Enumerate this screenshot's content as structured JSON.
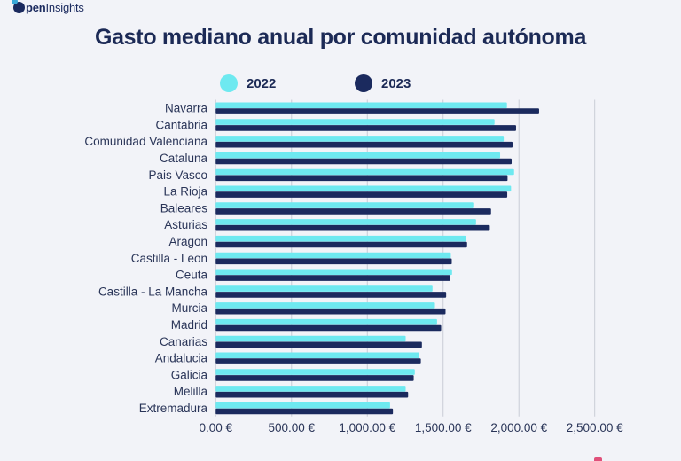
{
  "brand": {
    "logo_bold": "pen",
    "logo_light": "Insights",
    "logo_icon": "open-insights-o-icon"
  },
  "chart_data": {
    "type": "bar",
    "orientation": "horizontal",
    "title": "Gasto mediano anual por comunidad autónoma",
    "xlabel": "",
    "ylabel": "",
    "xlim": [
      0,
      2500
    ],
    "x_ticks": [
      0,
      500,
      1000,
      1500,
      2000,
      2500
    ],
    "x_tick_labels": [
      "0.00 €",
      "500.00 €",
      "1,000.00 €",
      "1,500.00 €",
      "2,000.00 €",
      "2,500.00 €"
    ],
    "grid": "vertical",
    "legend_position": "top",
    "categories": [
      "Navarra",
      "Cantabria",
      "Comunidad Valenciana",
      "Cataluna",
      "Pais Vasco",
      "La Rioja",
      "Baleares",
      "Asturias",
      "Aragon",
      "Castilla - Leon",
      "Ceuta",
      "Castilla - La Mancha",
      "Murcia",
      "Madrid",
      "Canarias",
      "Andalucia",
      "Galicia",
      "Melilla",
      "Extremadura"
    ],
    "series": [
      {
        "name": "2022",
        "color": "#6ee9f0",
        "values": [
          1921,
          1839,
          1900,
          1876,
          1968,
          1948,
          1699,
          1717,
          1650,
          1551,
          1559,
          1430,
          1446,
          1460,
          1253,
          1343,
          1313,
          1253,
          1150
        ]
      },
      {
        "name": "2023",
        "color": "#1b2a5e",
        "values": [
          2133,
          1981,
          1958,
          1952,
          1925,
          1923,
          1816,
          1808,
          1658,
          1557,
          1547,
          1520,
          1516,
          1487,
          1360,
          1353,
          1306,
          1269,
          1169
        ]
      }
    ]
  },
  "colors": {
    "background": "#f2f3f8",
    "text": "#1c2a56",
    "gridline": "#c9ccd6"
  }
}
